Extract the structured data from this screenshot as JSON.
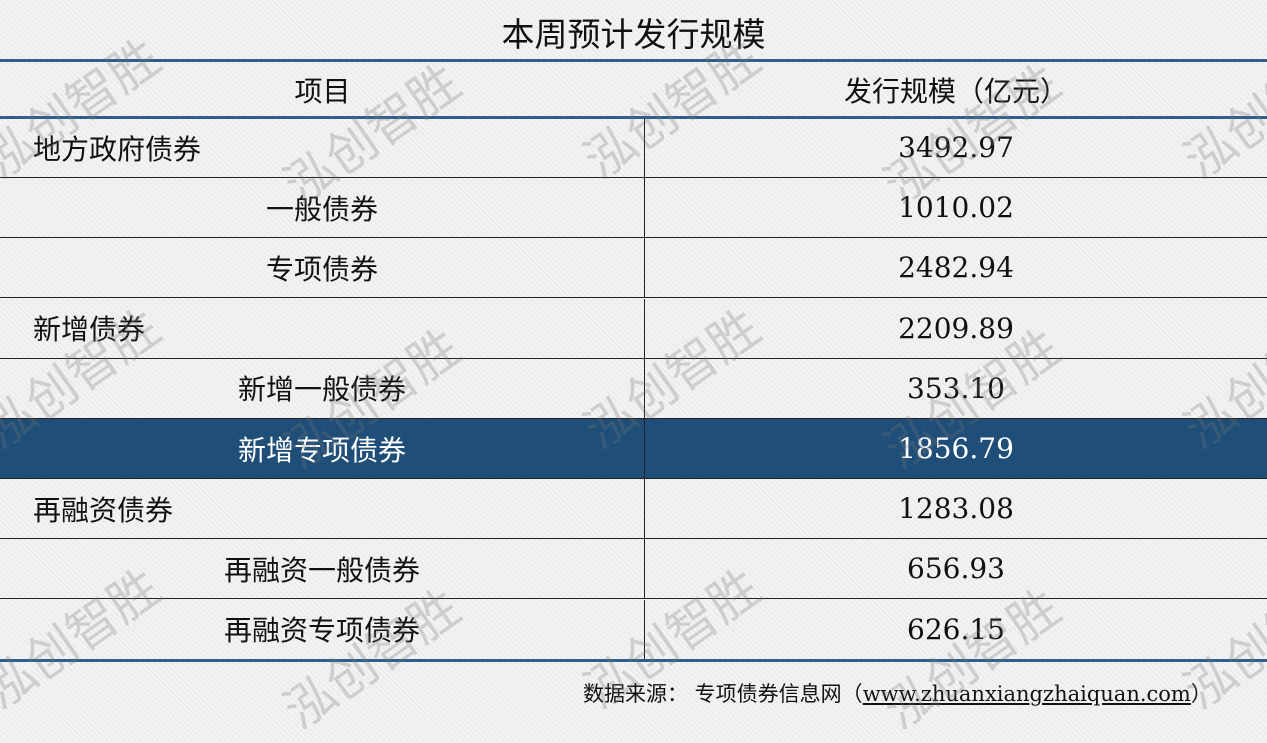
{
  "title": "本周预计发行规模",
  "header": {
    "item": "项目",
    "value": "发行规模（亿元）"
  },
  "rows": [
    {
      "label": "地方政府债券",
      "value": "3492.97",
      "level": 0
    },
    {
      "label": "一般债券",
      "value": "1010.02",
      "level": 1
    },
    {
      "label": "专项债券",
      "value": "2482.94",
      "level": 1
    },
    {
      "label": "新增债券",
      "value": "2209.89",
      "level": 0
    },
    {
      "label": "新增一般债券",
      "value": "353.10",
      "level": 1
    },
    {
      "label": "新增专项债券",
      "value": "1856.79",
      "level": 1,
      "highlight": true
    },
    {
      "label": "再融资债券",
      "value": "1283.08",
      "level": 0
    },
    {
      "label": "再融资一般债券",
      "value": "656.93",
      "level": 1
    },
    {
      "label": "再融资专项债券",
      "value": "626.15",
      "level": 1
    }
  ],
  "footer": {
    "prefix": "数据来源：  专项债券信息网（",
    "url": "www.zhuanxiangzhaiquan.com",
    "suffix": "）"
  },
  "watermark": "泓创智胜",
  "colors": {
    "rule": "#2f5f8f",
    "highlight": "#1f4e79"
  }
}
